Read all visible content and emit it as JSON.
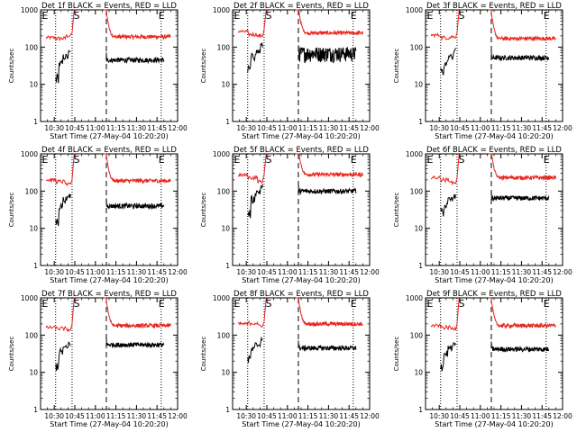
{
  "layout": {
    "cols": 3,
    "rows": 3
  },
  "common": {
    "xlabel": "Start Time (27-May-04 10:20:20)",
    "ylabel": "Counts/sec",
    "xticks": [
      "10:30",
      "10:45",
      "11:00",
      "11:15",
      "11:30",
      "11:45",
      "12:00"
    ],
    "yticks": [
      "1",
      "10",
      "100",
      "1000"
    ],
    "xlim": [
      "10:20",
      "12:00"
    ],
    "ylim": [
      1,
      1000
    ],
    "yscale": "log",
    "markers": [
      "E",
      "S",
      "E"
    ],
    "series_colors": {
      "events": "#000000",
      "lld": "#e8261f"
    }
  },
  "chart_data": [
    {
      "type": "line",
      "title": "Det 1f BLACK = Events, RED = LLD",
      "lld": [
        180,
        170,
        200,
        240
      ],
      "events": [
        15,
        35,
        55,
        70
      ],
      "lld_after": 190,
      "events_after": 45,
      "spiky": false
    },
    {
      "type": "line",
      "title": "Det 2f BLACK = Events, RED = LLD",
      "lld": [
        260,
        220,
        200,
        300
      ],
      "events": [
        25,
        55,
        75,
        110
      ],
      "lld_after": 240,
      "events_after": 70,
      "spiky": true
    },
    {
      "type": "line",
      "title": "Det 3f BLACK = Events, RED = LLD",
      "lld": [
        210,
        180,
        190,
        240
      ],
      "events": [
        22,
        35,
        55,
        80
      ],
      "lld_after": 170,
      "events_after": 52,
      "spiky": false
    },
    {
      "type": "line",
      "title": "Det 4f BLACK = Events, RED = LLD",
      "lld": [
        200,
        180,
        150,
        200
      ],
      "events": [
        15,
        40,
        60,
        75
      ],
      "lld_after": 190,
      "events_after": 40,
      "spiky": false
    },
    {
      "type": "line",
      "title": "Det 5f BLACK = Events, RED = LLD",
      "lld": [
        270,
        230,
        180,
        280
      ],
      "events": [
        25,
        60,
        95,
        130
      ],
      "lld_after": 280,
      "events_after": 100,
      "spiky": false
    },
    {
      "type": "line",
      "title": "Det 6f BLACK = Events, RED = LLD",
      "lld": [
        230,
        200,
        170,
        230
      ],
      "events": [
        28,
        40,
        60,
        70
      ],
      "lld_after": 230,
      "events_after": 65,
      "spiky": false
    },
    {
      "type": "line",
      "title": "Det 7f BLACK = Events, RED = LLD",
      "lld": [
        160,
        150,
        140,
        200
      ],
      "events": [
        15,
        35,
        45,
        60
      ],
      "lld_after": 180,
      "events_after": 55,
      "spiky": false
    },
    {
      "type": "line",
      "title": "Det 8f BLACK = Events, RED = LLD",
      "lld": [
        200,
        210,
        180,
        230
      ],
      "events": [
        22,
        40,
        55,
        80
      ],
      "lld_after": 200,
      "events_after": 45,
      "spiky": false
    },
    {
      "type": "line",
      "title": "Det 9f BLACK = Events, RED = LLD",
      "lld": [
        180,
        160,
        150,
        200
      ],
      "events": [
        15,
        32,
        45,
        60
      ],
      "lld_after": 180,
      "events_after": 42,
      "spiky": false
    }
  ]
}
